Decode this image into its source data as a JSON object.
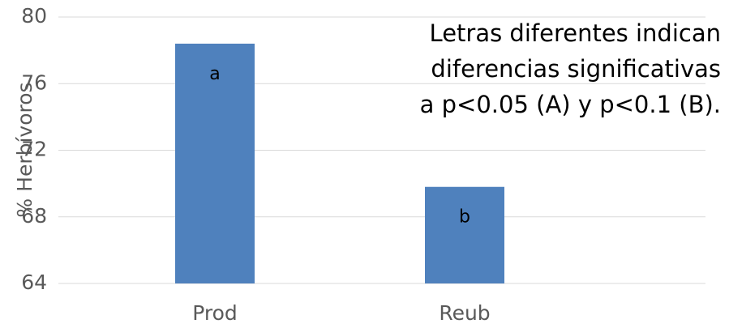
{
  "chart_data": {
    "type": "bar",
    "ylabel": "% Herbívoros",
    "categories": [
      "Prod",
      "Reub"
    ],
    "values": [
      78.4,
      69.8
    ],
    "color": "#4f81bd",
    "bar_labels": [
      "a",
      "b"
    ],
    "annotation": [
      "Letras diferentes indican",
      "diferencias significativas",
      "a p<0.05 (A) y p<0.1 (B)."
    ],
    "ylim": [
      64,
      80
    ],
    "yticks": [
      64,
      68,
      72,
      76,
      80
    ],
    "grid": true
  }
}
